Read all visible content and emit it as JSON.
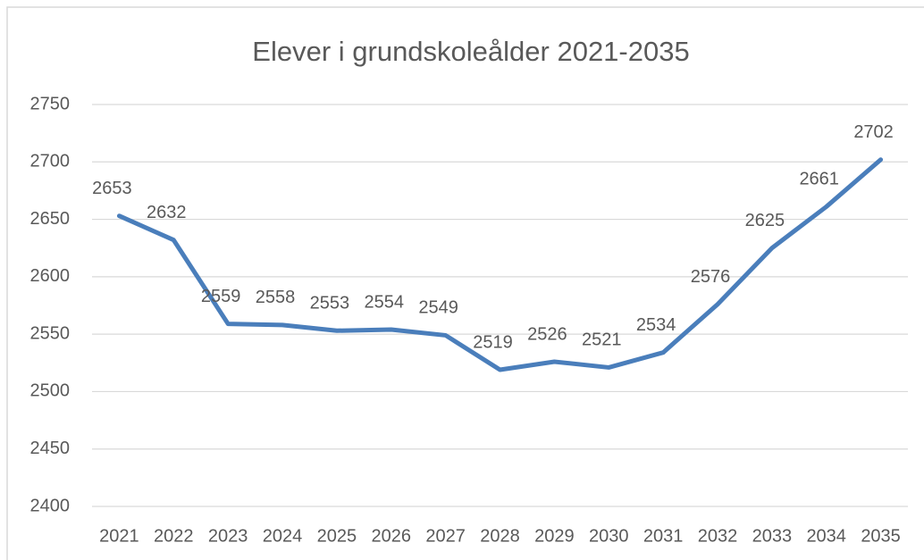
{
  "chart_data": {
    "type": "line",
    "title": "Elever i grundskoleålder 2021-2035",
    "categories": [
      "2021",
      "2022",
      "2023",
      "2024",
      "2025",
      "2026",
      "2027",
      "2028",
      "2029",
      "2030",
      "2031",
      "2032",
      "2033",
      "2034",
      "2035"
    ],
    "values": [
      2653,
      2632,
      2559,
      2558,
      2553,
      2554,
      2549,
      2519,
      2526,
      2521,
      2534,
      2576,
      2625,
      2661,
      2702
    ],
    "color": "#4a7ebb",
    "ylim": [
      2400,
      2750
    ],
    "yticks": [
      2400,
      2450,
      2500,
      2550,
      2600,
      2650,
      2700,
      2750
    ],
    "grid": true
  }
}
